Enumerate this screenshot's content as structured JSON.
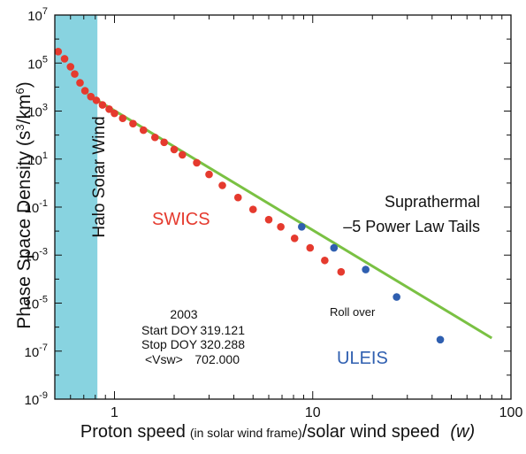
{
  "chart_data": {
    "type": "scatter",
    "xscale": "log",
    "yscale": "log",
    "xlim": [
      0.5,
      100
    ],
    "ylim": [
      1e-09,
      10000000.0
    ],
    "x_ticks": [
      {
        "value": 1,
        "label": "1"
      },
      {
        "value": 10,
        "label": "10"
      },
      {
        "value": 100,
        "label": "100"
      }
    ],
    "y_ticks": [
      {
        "value": 10000000.0,
        "base": "10",
        "exp": "7"
      },
      {
        "value": 100000.0,
        "base": "10",
        "exp": "5"
      },
      {
        "value": 1000.0,
        "base": "10",
        "exp": "3"
      },
      {
        "value": 10.0,
        "base": "10",
        "exp": "1"
      },
      {
        "value": 0.1,
        "base": "10",
        "exp": "-1"
      },
      {
        "value": 0.001,
        "base": "10",
        "exp": "-3"
      },
      {
        "value": 1e-05,
        "base": "10",
        "exp": "-5"
      },
      {
        "value": 1e-07,
        "base": "10",
        "exp": "-7"
      },
      {
        "value": 1e-09,
        "base": "10",
        "exp": "-9"
      }
    ],
    "xlabel": {
      "main": "Proton speed",
      "small": "(in solar wind frame)",
      "rest": "/solar wind speed",
      "var": "(w)"
    },
    "ylabel": {
      "prefix": "Phase Space Density (s",
      "exp1": "3",
      "mid": "/km",
      "exp2": "6",
      "suffix": ")"
    },
    "shaded_region": {
      "x0": 0.5,
      "x1": 0.82,
      "label": "Halo Solar Wind",
      "color": "#88d3e0"
    },
    "fit_line": {
      "color": "#7ac143",
      "points": [
        [
          0.73,
          5000
        ],
        [
          80,
          3.5e-07
        ]
      ]
    },
    "series": [
      {
        "name": "SWICS",
        "color": "#e53a2e",
        "points": [
          [
            0.52,
            300000
          ],
          [
            0.56,
            150000
          ],
          [
            0.6,
            70000
          ],
          [
            0.63,
            35000
          ],
          [
            0.67,
            15000
          ],
          [
            0.71,
            7000
          ],
          [
            0.76,
            4000
          ],
          [
            0.81,
            2800
          ],
          [
            0.87,
            1800
          ],
          [
            0.94,
            1200
          ],
          [
            1.0,
            800
          ],
          [
            1.1,
            500
          ],
          [
            1.24,
            300
          ],
          [
            1.4,
            160
          ],
          [
            1.6,
            80
          ],
          [
            1.78,
            50
          ],
          [
            2.0,
            25
          ],
          [
            2.2,
            15
          ],
          [
            2.6,
            7
          ],
          [
            3.0,
            2.3
          ],
          [
            3.5,
            0.8
          ],
          [
            4.2,
            0.25
          ],
          [
            5.0,
            0.08
          ],
          [
            6.0,
            0.03
          ],
          [
            6.9,
            0.015
          ],
          [
            8.1,
            0.005
          ],
          [
            9.7,
            0.002
          ],
          [
            11.5,
            0.0006
          ],
          [
            13.9,
            0.0002
          ]
        ]
      },
      {
        "name": "ULEIS",
        "color": "#2f5fb0",
        "points": [
          [
            8.8,
            0.015
          ],
          [
            12.8,
            0.002
          ],
          [
            18.5,
            0.00025
          ],
          [
            26.5,
            1.8e-05
          ],
          [
            44,
            3e-07
          ]
        ]
      }
    ],
    "annotations": {
      "swics_label": "SWICS",
      "uleis_label": "ULEIS",
      "suprathermal_line1": "Suprathermal",
      "suprathermal_line2": "–5 Power Law Tails",
      "roll_over": "Roll over",
      "year": "2003",
      "start_label": "Start DOY",
      "start_value": "319.121",
      "stop_label": "Stop DOY",
      "stop_value": "320.288",
      "vsw_label": "<Vsw>",
      "vsw_value": "702.000"
    },
    "colors": {
      "swics": "#e53a2e",
      "uleis": "#2f5fb0",
      "fit": "#7ac143",
      "halo": "#88d3e0"
    }
  }
}
